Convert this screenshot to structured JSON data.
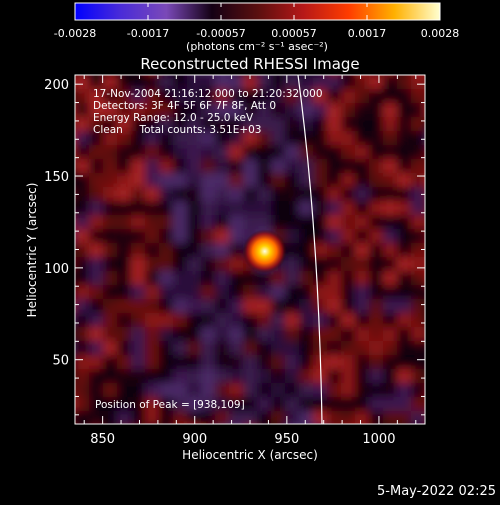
{
  "colorbar": {
    "tick_labels": [
      "-0.0028",
      "-0.0017",
      "-0.00057",
      "0.00057",
      "0.0017",
      "0.0028"
    ],
    "units_label": "(photons cm⁻² s⁻¹ asec⁻²)",
    "colors": [
      "#0000ff",
      "#4a2bd8",
      "#7a49b8",
      "#140014",
      "#5a0f0f",
      "#b61818",
      "#ff3c00",
      "#ffb000",
      "#ffffd0"
    ]
  },
  "image": {
    "title": "Reconstructed RHESSI Image",
    "info_lines": [
      "17-Nov-2004 21:16:12.000 to 21:20:32.000",
      "Detectors: 3F 4F 5F 6F 7F 8F, Att 0",
      "Energy Range: 12.0 - 25.0 keV",
      "Clean     Total counts: 3.51E+03"
    ],
    "peak_text": "Position of Peak = [938,109]",
    "xlabel": "Heliocentric X (arcsec)",
    "ylabel": "Heliocentric Y (arcsec)",
    "xticks": [
      850,
      900,
      950,
      1000
    ],
    "yticks": [
      50,
      100,
      150,
      200
    ],
    "xlim": [
      835,
      1025
    ],
    "ylim": [
      15,
      205
    ],
    "peak": [
      938,
      109
    ]
  },
  "footer": {
    "timestamp": "5-May-2022 02:25"
  }
}
